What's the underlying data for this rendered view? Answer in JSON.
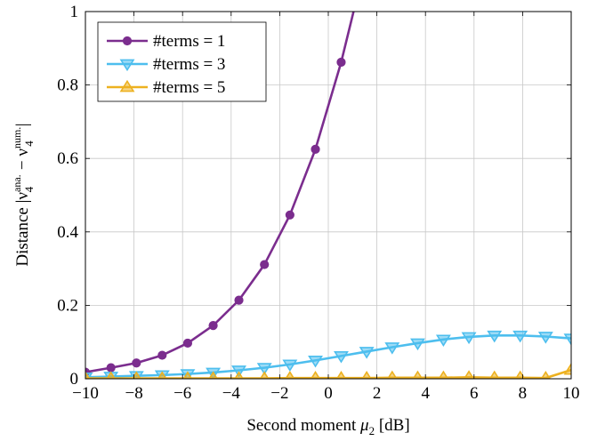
{
  "chart_data": {
    "type": "line",
    "xlabel_text": "Second moment ",
    "xlabel_symbol": "μ",
    "xlabel_sub": "2",
    "xlabel_unit": " [dB]",
    "ylabel_text": "Distance |ν",
    "ylabel_sup1": "ana.",
    "ylabel_mid": " − ν",
    "ylabel_sup2": "num.",
    "ylabel_sub": "4",
    "ylabel_end": "|",
    "xlim": [
      -10,
      10
    ],
    "ylim": [
      0,
      1
    ],
    "xticks": [
      -10,
      -8,
      -6,
      -4,
      -2,
      0,
      2,
      4,
      6,
      8,
      10
    ],
    "xtick_labels": [
      "−10",
      "−8",
      "−6",
      "−4",
      "−2",
      "0",
      "2",
      "4",
      "6",
      "8",
      "10"
    ],
    "yticks": [
      0,
      0.2,
      0.4,
      0.6,
      0.8,
      1
    ],
    "ytick_labels": [
      "0",
      "0.2",
      "0.4",
      "0.6",
      "0.8",
      "1"
    ],
    "grid": true,
    "legend_position": "top-left",
    "series": [
      {
        "name": "#terms = 1",
        "color": "#7b2d8e",
        "marker": "circle",
        "x": [
          -10,
          -8.95,
          -7.9,
          -6.84,
          -5.79,
          -4.74,
          -3.68,
          -2.63,
          -1.58,
          -0.53,
          0.53,
          1.04
        ],
        "y": [
          0.018,
          0.03,
          0.043,
          0.064,
          0.097,
          0.145,
          0.214,
          0.311,
          0.446,
          0.625,
          0.862,
          1.0
        ],
        "marker_count": 11
      },
      {
        "name": "#terms = 3",
        "color": "#4dbeee",
        "marker": "triangle-down",
        "x": [
          -10,
          -8.95,
          -7.9,
          -6.84,
          -5.79,
          -4.74,
          -3.68,
          -2.63,
          -1.58,
          -0.53,
          0.53,
          1.58,
          2.63,
          3.68,
          4.74,
          5.79,
          6.84,
          7.9,
          8.95,
          10
        ],
        "y": [
          0.004,
          0.006,
          0.008,
          0.01,
          0.013,
          0.017,
          0.023,
          0.03,
          0.039,
          0.05,
          0.062,
          0.074,
          0.086,
          0.097,
          0.107,
          0.114,
          0.118,
          0.118,
          0.115,
          0.11
        ]
      },
      {
        "name": "#terms = 5",
        "color": "#edb120",
        "marker": "triangle-up",
        "x": [
          -10,
          -8.95,
          -7.9,
          -6.84,
          -5.79,
          -4.74,
          -3.68,
          -2.63,
          -1.58,
          -0.53,
          0.53,
          1.58,
          2.63,
          3.68,
          4.74,
          5.79,
          6.84,
          7.9,
          8.95,
          10
        ],
        "y": [
          0.001,
          0.001,
          0.001,
          0.001,
          0.001,
          0.001,
          0.001,
          0.001,
          0.002,
          0.002,
          0.002,
          0.002,
          0.003,
          0.003,
          0.003,
          0.004,
          0.003,
          0.003,
          0.002,
          0.024
        ]
      }
    ]
  }
}
